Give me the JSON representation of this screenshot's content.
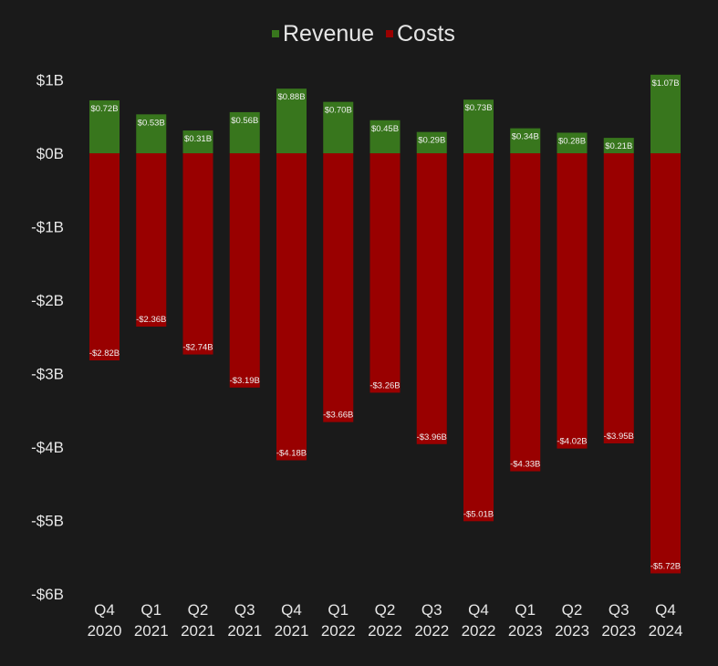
{
  "chart_data": {
    "type": "bar",
    "stacked": true,
    "title": "",
    "xlabel": "",
    "ylabel": "",
    "categories": [
      [
        "Q4",
        "2020"
      ],
      [
        "Q1",
        "2021"
      ],
      [
        "Q2",
        "2021"
      ],
      [
        "Q3",
        "2021"
      ],
      [
        "Q4",
        "2021"
      ],
      [
        "Q1",
        "2022"
      ],
      [
        "Q2",
        "2022"
      ],
      [
        "Q3",
        "2022"
      ],
      [
        "Q4",
        "2022"
      ],
      [
        "Q1",
        "2023"
      ],
      [
        "Q2",
        "2023"
      ],
      [
        "Q3",
        "2023"
      ],
      [
        "Q4",
        "2024"
      ]
    ],
    "series": [
      {
        "name": "Revenue",
        "color": "#38761d",
        "values": [
          0.72,
          0.53,
          0.31,
          0.56,
          0.88,
          0.7,
          0.45,
          0.29,
          0.73,
          0.34,
          0.28,
          0.21,
          1.07
        ],
        "labels": [
          "$0.72B",
          "$0.53B",
          "$0.31B",
          "$0.56B",
          "$0.88B",
          "$0.70B",
          "$0.45B",
          "$0.29B",
          "$0.73B",
          "$0.34B",
          "$0.28B",
          "$0.21B",
          "$1.07B"
        ]
      },
      {
        "name": "Costs",
        "color": "#990000",
        "values": [
          -2.82,
          -2.36,
          -2.74,
          -3.19,
          -4.18,
          -3.66,
          -3.26,
          -3.96,
          -5.01,
          -4.33,
          -4.02,
          -3.95,
          -5.72
        ],
        "labels": [
          "-$2.82B",
          "-$2.36B",
          "-$2.74B",
          "-$3.19B",
          "-$4.18B",
          "-$3.66B",
          "-$3.26B",
          "-$3.96B",
          "-$5.01B",
          "-$4.33B",
          "-$4.02B",
          "-$3.95B",
          "-$5.72B"
        ]
      }
    ],
    "ylim": [
      -6,
      1
    ],
    "yticks": [
      1,
      0,
      -1,
      -2,
      -3,
      -4,
      -5,
      -6
    ],
    "ytick_labels": [
      "$1B",
      "$0B",
      "-$1B",
      "-$2B",
      "-$3B",
      "-$4B",
      "-$5B",
      "-$6B"
    ],
    "legend_position": "top-center",
    "grid": false
  }
}
